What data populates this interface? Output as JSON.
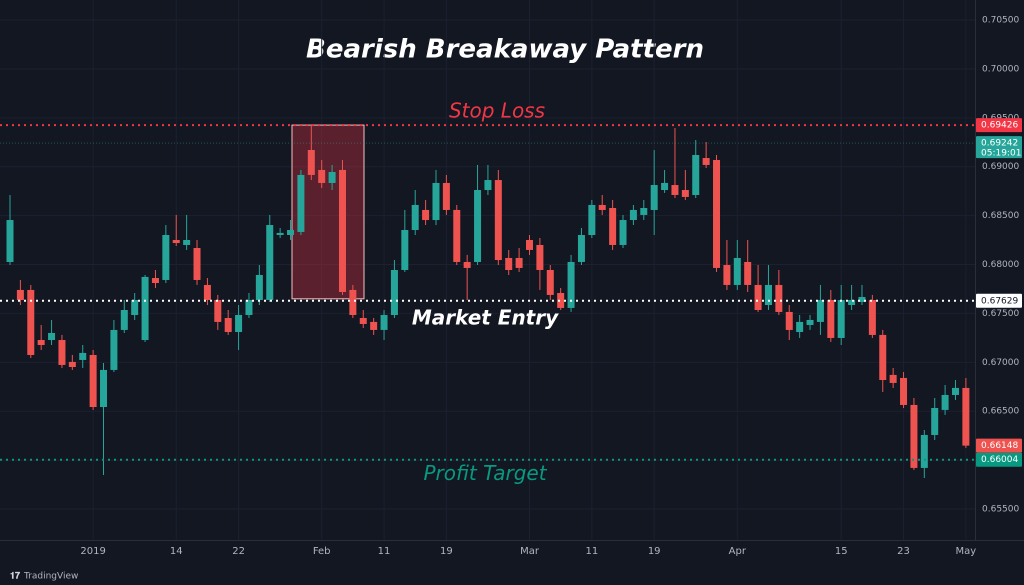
{
  "chart_data": {
    "type": "candlestick",
    "title": "Bearish Breakaway Pattern",
    "categories": [
      null,
      null,
      null,
      null,
      null,
      null,
      null,
      null,
      "2019",
      null,
      null,
      null,
      null,
      null,
      null,
      null,
      "14",
      null,
      null,
      null,
      null,
      null,
      "22",
      null,
      null,
      null,
      null,
      null,
      null,
      null,
      "Feb",
      null,
      null,
      null,
      null,
      null,
      "11",
      null,
      null,
      null,
      null,
      null,
      "19",
      null,
      null,
      null,
      null,
      null,
      null,
      null,
      "Mar",
      null,
      null,
      null,
      null,
      null,
      "11",
      null,
      null,
      null,
      null,
      null,
      "19",
      null,
      null,
      null,
      null,
      null,
      null,
      null,
      "Apr",
      null,
      null,
      null,
      null,
      null,
      null,
      null,
      null,
      null,
      "15",
      null,
      null,
      null,
      null,
      null,
      "23",
      null,
      null,
      null,
      null,
      null,
      "May"
    ],
    "open": [
      0.68026,
      0.6774,
      0.6774,
      0.67228,
      0.67228,
      0.67228,
      0.67004,
      0.67024,
      0.67075,
      0.66543,
      0.66922,
      0.67331,
      0.67484,
      0.67228,
      0.67862,
      0.67842,
      0.68251,
      0.682,
      0.68169,
      0.67791,
      0.67637,
      0.67453,
      0.6731,
      0.67484,
      0.67637,
      0.67637,
      0.68302,
      0.68302,
      0.68333,
      0.69171,
      0.68967,
      0.68834,
      0.68967,
      0.6774,
      0.67453,
      0.67413,
      0.67331,
      0.67484,
      0.67944,
      0.68353,
      0.68558,
      0.68455,
      0.68834,
      0.68558,
      0.68026,
      0.68026,
      0.68762,
      0.68864,
      0.68067,
      0.68067,
      0.68251,
      0.682,
      0.67944,
      0.67709,
      0.67556,
      0.68026,
      0.68302,
      0.68609,
      0.68578,
      0.682,
      0.68455,
      0.68507,
      0.68558,
      0.68762,
      0.68813,
      0.68762,
      0.68711,
      0.69089,
      0.69069,
      0.67995,
      0.67791,
      0.68026,
      0.67791,
      0.67586,
      0.67791,
      0.67515,
      0.6731,
      0.67382,
      0.67413,
      0.67637,
      0.67249,
      0.67586,
      0.67617,
      0.67637,
      0.6728,
      0.66871,
      0.6684,
      0.66564,
      0.6592,
      0.66257,
      0.66513,
      0.66666,
      0.66738
    ],
    "high": [
      0.68711,
      0.67842,
      0.67791,
      0.67382,
      0.67433,
      0.6728,
      0.67075,
      0.67177,
      0.67126,
      0.66993,
      0.67433,
      0.67637,
      0.67709,
      0.67893,
      0.67944,
      0.68404,
      0.68507,
      0.68507,
      0.68251,
      0.67862,
      0.67689,
      0.67535,
      0.67586,
      0.67709,
      0.67995,
      0.68507,
      0.68374,
      0.68455,
      0.68967,
      0.69427,
      0.69069,
      0.69018,
      0.69069,
      0.67791,
      0.67535,
      0.67453,
      0.67535,
      0.68046,
      0.68558,
      0.68762,
      0.6866,
      0.68967,
      0.68916,
      0.68609,
      0.68098,
      0.69018,
      0.69018,
      0.68967,
      0.68149,
      0.68169,
      0.68302,
      0.68271,
      0.67995,
      0.6776,
      0.68098,
      0.68374,
      0.6866,
      0.68711,
      0.6866,
      0.68507,
      0.68609,
      0.6866,
      0.69171,
      0.68967,
      0.69396,
      0.68967,
      0.69273,
      0.69253,
      0.6912,
      0.68251,
      0.68251,
      0.68251,
      0.67995,
      0.67995,
      0.67944,
      0.67586,
      0.67484,
      0.67484,
      0.67791,
      0.6774,
      0.67791,
      0.67791,
      0.67791,
      0.67689,
      0.67331,
      0.66942,
      0.66901,
      0.66635,
      0.66308,
      0.66635,
      0.66768,
      0.66819,
      0.6684
    ],
    "low": [
      0.67995,
      0.67586,
      0.67044,
      0.67126,
      0.67177,
      0.66942,
      0.66922,
      0.66942,
      0.66513,
      0.65848,
      0.66901,
      0.673,
      0.67433,
      0.67208,
      0.6776,
      0.67811,
      0.6819,
      0.68149,
      0.67791,
      0.67586,
      0.67331,
      0.6728,
      0.67126,
      0.67453,
      0.67586,
      0.67617,
      0.68271,
      0.68251,
      0.68302,
      0.68864,
      0.68783,
      0.68762,
      0.67689,
      0.67453,
      0.67351,
      0.6728,
      0.67228,
      0.67453,
      0.67924,
      0.68302,
      0.68404,
      0.68404,
      0.68507,
      0.67995,
      0.67637,
      0.67995,
      0.68711,
      0.67995,
      0.67893,
      0.67924,
      0.68098,
      0.6774,
      0.67637,
      0.67535,
      0.67515,
      0.67995,
      0.68271,
      0.68507,
      0.68149,
      0.68169,
      0.68404,
      0.68455,
      0.68302,
      0.68732,
      0.6868,
      0.6866,
      0.6868,
      0.68987,
      0.67924,
      0.6774,
      0.6774,
      0.67719,
      0.67515,
      0.67535,
      0.67484,
      0.67228,
      0.67249,
      0.67331,
      0.6728,
      0.67208,
      0.67177,
      0.67535,
      0.67586,
      0.67249,
      0.66697,
      0.66738,
      0.66533,
      0.65899,
      0.65817,
      0.66206,
      0.66462,
      0.66615,
      0.66124
    ],
    "close": [
      0.68455,
      0.67637,
      0.67075,
      0.67177,
      0.673,
      0.66973,
      0.66952,
      0.67096,
      0.66543,
      0.66922,
      0.67331,
      0.67535,
      0.67637,
      0.67873,
      0.67811,
      0.68302,
      0.6822,
      0.68251,
      0.67842,
      0.67637,
      0.67413,
      0.6731,
      0.67484,
      0.67637,
      0.67893,
      0.68404,
      0.68323,
      0.68353,
      0.68916,
      0.68916,
      0.68834,
      0.68946,
      0.67719,
      0.67484,
      0.67392,
      0.67331,
      0.67484,
      0.67944,
      0.68353,
      0.68609,
      0.68455,
      0.68834,
      0.68558,
      0.68026,
      0.67965,
      0.68762,
      0.68864,
      0.68046,
      0.67944,
      0.67965,
      0.68149,
      0.67944,
      0.67689,
      0.67556,
      0.68026,
      0.68302,
      0.68609,
      0.68558,
      0.682,
      0.68455,
      0.68558,
      0.68578,
      0.68813,
      0.68834,
      0.68711,
      0.68691,
      0.6912,
      0.69018,
      0.67965,
      0.67791,
      0.68067,
      0.67791,
      0.67535,
      0.67791,
      0.67515,
      0.67331,
      0.67413,
      0.67433,
      0.67637,
      0.67249,
      0.67637,
      0.67637,
      0.67668,
      0.6728,
      0.66819,
      0.66789,
      0.66564,
      0.6592,
      0.66257,
      0.66533,
      0.66666,
      0.66738,
      0.66148
    ],
    "up_color": "#26a69a",
    "down_color": "#ef5350",
    "ylim": [
      0.65183,
      0.70705
    ],
    "yticks": [
      {
        "value": 0.655,
        "label": "0.65500"
      },
      {
        "value": 0.66,
        "label": "0.66000"
      },
      {
        "value": 0.665,
        "label": "0.66500"
      },
      {
        "value": 0.67,
        "label": "0.67000"
      },
      {
        "value": 0.675,
        "label": "0.67500"
      },
      {
        "value": 0.68,
        "label": "0.68000"
      },
      {
        "value": 0.685,
        "label": "0.68500"
      },
      {
        "value": 0.69,
        "label": "0.69000"
      },
      {
        "value": 0.695,
        "label": "0.69500"
      },
      {
        "value": 0.7,
        "label": "0.70000"
      },
      {
        "value": 0.705,
        "label": "0.70500"
      }
    ],
    "grid": true,
    "levels": [
      {
        "name": "Stop Loss",
        "value": 0.69426,
        "color": "#f23645"
      },
      {
        "name": "Market Entry",
        "value": 0.67629,
        "color": "#ffffff"
      },
      {
        "name": "Profit Target",
        "value": 0.66004,
        "color": "#089981"
      }
    ],
    "current_price": {
      "value": 0.69242,
      "countdown": "05:19:01",
      "color": "#26a69a"
    },
    "watermark": "TradingView"
  }
}
